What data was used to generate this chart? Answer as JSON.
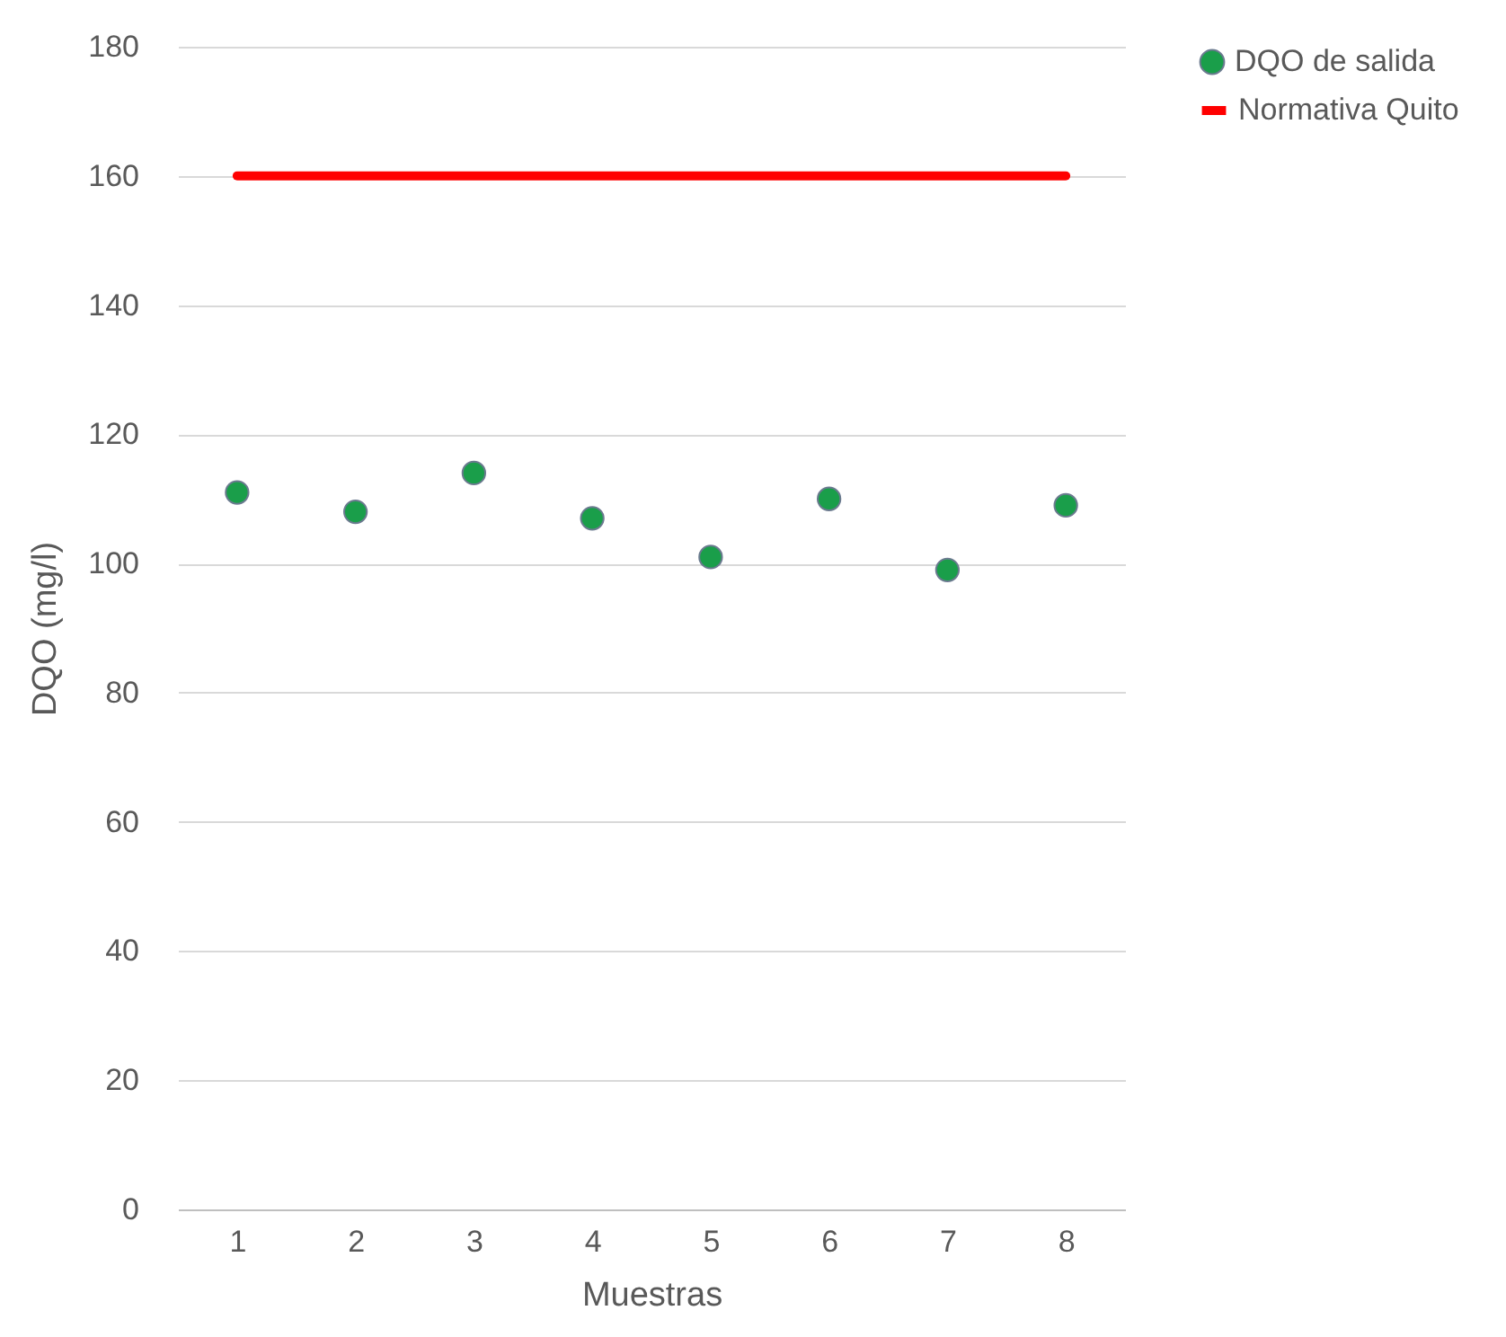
{
  "chart_data": {
    "type": "scatter",
    "xlabel": "Muestras",
    "ylabel": "DQO (mg/l)",
    "categories": [
      "1",
      "2",
      "3",
      "4",
      "5",
      "6",
      "7",
      "8"
    ],
    "series": [
      {
        "name": "DQO de salida",
        "color": "#1a9e4a",
        "marker": "circle",
        "values": [
          111,
          108,
          114,
          107,
          101,
          110,
          99,
          109
        ]
      },
      {
        "name": "Normativa Quito",
        "type": "line",
        "color": "#ff0000",
        "values": [
          160,
          160,
          160,
          160,
          160,
          160,
          160,
          160
        ]
      }
    ],
    "ylim": [
      0,
      180
    ],
    "yticks": [
      0,
      20,
      40,
      60,
      80,
      100,
      120,
      140,
      160,
      180
    ],
    "grid": "y",
    "legend": "right"
  }
}
